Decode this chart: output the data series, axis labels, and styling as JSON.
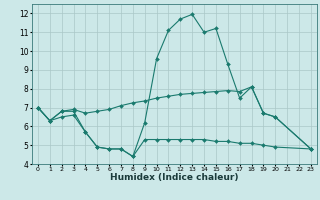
{
  "xlabel": "Humidex (Indice chaleur)",
  "line_color": "#1a7a6e",
  "bg_color": "#cce8e8",
  "grid_color": "#aac8c8",
  "ylim": [
    4,
    12.5
  ],
  "xlim": [
    -0.5,
    23.5
  ],
  "yticks": [
    4,
    5,
    6,
    7,
    8,
    9,
    10,
    11,
    12
  ],
  "line1_x": [
    0,
    1,
    2,
    3,
    4,
    5,
    6,
    7,
    8,
    9,
    10,
    11,
    12,
    13,
    14,
    15,
    16,
    17,
    18,
    19,
    20,
    23
  ],
  "line1_y": [
    7.0,
    6.3,
    6.8,
    6.8,
    5.7,
    4.9,
    4.8,
    4.8,
    4.4,
    6.2,
    9.6,
    11.1,
    11.7,
    11.95,
    11.0,
    11.2,
    9.3,
    7.5,
    8.1,
    6.7,
    6.5,
    4.8
  ],
  "line2_x": [
    0,
    1,
    2,
    3,
    4,
    5,
    6,
    7,
    8,
    9,
    10,
    11,
    12,
    13,
    14,
    15,
    16,
    17,
    18,
    19,
    20,
    23
  ],
  "line2_y": [
    7.0,
    6.3,
    6.8,
    6.9,
    6.7,
    6.8,
    6.9,
    7.1,
    7.25,
    7.35,
    7.5,
    7.6,
    7.7,
    7.75,
    7.8,
    7.85,
    7.9,
    7.85,
    8.1,
    6.7,
    6.5,
    4.8
  ],
  "line3_x": [
    0,
    1,
    2,
    3,
    4,
    5,
    6,
    7,
    8,
    9,
    10,
    11,
    12,
    13,
    14,
    15,
    16,
    17,
    18,
    19,
    20,
    23
  ],
  "line3_y": [
    7.0,
    6.3,
    6.5,
    6.6,
    5.7,
    4.9,
    4.8,
    4.8,
    4.4,
    5.3,
    5.3,
    5.3,
    5.3,
    5.3,
    5.3,
    5.2,
    5.2,
    5.1,
    5.1,
    5.0,
    4.9,
    4.8
  ]
}
